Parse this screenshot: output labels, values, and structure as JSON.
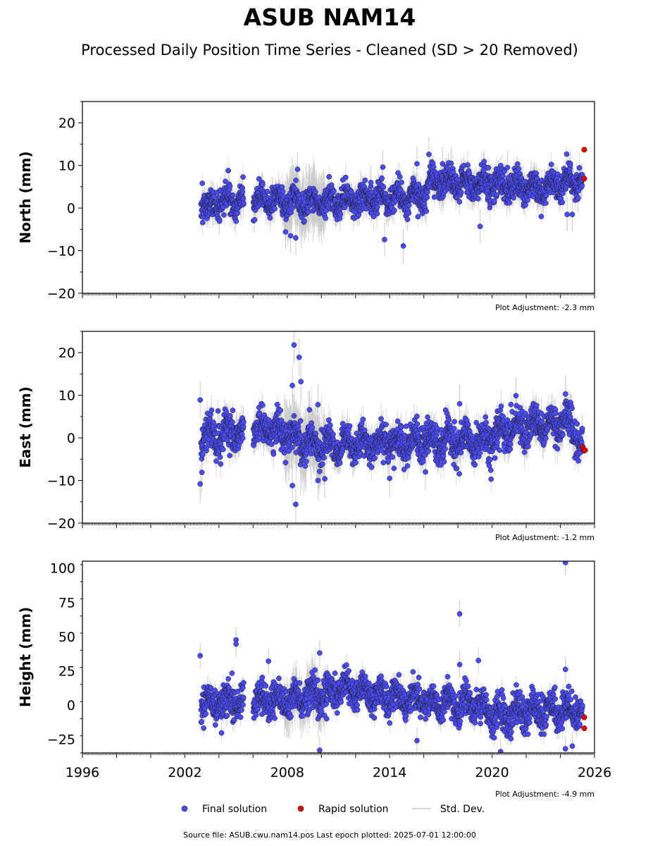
{
  "title": "ASUB NAM14",
  "subtitle": "Processed Daily Position Time Series - Cleaned (SD > 20 Removed)",
  "source_note": "Source file: ASUB.cwu.nam14.pos  Last epoch plotted: 2025-07-01 12:00:00",
  "legend": {
    "final": "Final solution",
    "rapid": "Rapid solution",
    "std": "Std. Dev."
  },
  "colors": {
    "final": "#4b4bf5",
    "rapid": "#e80000",
    "std": "#c8c8c8",
    "edge": "#1a1a1a"
  },
  "chart_data": [
    {
      "type": "scatter",
      "ylabel": "North (mm)",
      "ylim": [
        -20,
        25
      ],
      "yticks": [
        -20,
        -10,
        0,
        10,
        20
      ],
      "ytick_labels": [
        "−20",
        "−10",
        "0",
        "10",
        "20"
      ],
      "xlim": [
        1996,
        2026
      ],
      "adjustment": "Plot Adjustment: -2.3 mm",
      "trend": [
        [
          2003.0,
          0.8
        ],
        [
          2006.0,
          1.7
        ],
        [
          2010.0,
          1.2
        ],
        [
          2016.1,
          2.8
        ],
        [
          2016.3,
          6.5
        ],
        [
          2023.0,
          4.6
        ],
        [
          2025.3,
          6.8
        ]
      ],
      "scatter_sd": 1.6,
      "sigma": 2.5,
      "outliers": [
        [
          2008.6,
          9.1
        ],
        [
          2008.5,
          -7.0
        ],
        [
          2008.2,
          -6.5
        ],
        [
          2013.6,
          9.6
        ],
        [
          2013.7,
          -7.4
        ],
        [
          2014.8,
          -8.9
        ],
        [
          2016.3,
          12.6
        ],
        [
          2017.6,
          10.5
        ],
        [
          2007.9,
          -5.6
        ],
        [
          2012.9,
          6.0
        ],
        [
          2024.4,
          -1.5
        ],
        [
          2024.7,
          -1.5
        ],
        [
          2019.3,
          -4.3
        ],
        [
          2015.6,
          10.4
        ],
        [
          2017.1,
          10.4
        ],
        [
          2020.9,
          9.5
        ],
        [
          2019.5,
          8.9
        ]
      ],
      "rapid": [
        [
          2025.4,
          13.7
        ],
        [
          2025.4,
          6.9
        ]
      ]
    },
    {
      "type": "scatter",
      "ylabel": "East (mm)",
      "ylim": [
        -20,
        25
      ],
      "yticks": [
        -20,
        -10,
        0,
        10,
        20
      ],
      "ytick_labels": [
        "−20",
        "−10",
        "0",
        "10",
        "20"
      ],
      "xlim": [
        1996,
        2026
      ],
      "adjustment": "Plot Adjustment: -1.2 mm",
      "trend": [
        [
          2003.0,
          0.5
        ],
        [
          2006.0,
          2.0
        ],
        [
          2008.0,
          1.5
        ],
        [
          2009.0,
          -1.5
        ],
        [
          2013.0,
          -1.5
        ],
        [
          2016.0,
          -1.2
        ],
        [
          2019.0,
          -1.0
        ],
        [
          2022.0,
          2.8
        ],
        [
          2024.5,
          3.6
        ],
        [
          2025.2,
          -1.0
        ]
      ],
      "scatter_sd": 2.0,
      "sigma": 2.8,
      "outliers": [
        [
          2008.4,
          21.8
        ],
        [
          2008.7,
          18.9
        ],
        [
          2008.8,
          13.2
        ],
        [
          2008.3,
          12.3
        ],
        [
          2008.5,
          -15.6
        ],
        [
          2008.3,
          -11.2
        ],
        [
          2002.9,
          -10.8
        ],
        [
          2003.0,
          -8.1
        ],
        [
          2002.9,
          8.9
        ],
        [
          2009.8,
          -10.0
        ],
        [
          2010.2,
          -9.6
        ],
        [
          2009.3,
          6.6
        ],
        [
          2009.8,
          7.8
        ],
        [
          2018.1,
          8.0
        ],
        [
          2021.4,
          9.9
        ],
        [
          2024.3,
          10.3
        ],
        [
          2016.1,
          -8.0
        ],
        [
          2014.0,
          -9.5
        ],
        [
          2007.9,
          -5.8
        ]
      ],
      "rapid": [
        [
          2025.3,
          -2.2
        ],
        [
          2025.35,
          -2.6
        ],
        [
          2025.4,
          -3.0
        ],
        [
          2025.45,
          -2.9
        ]
      ]
    },
    {
      "type": "scatter",
      "ylabel": "Height (mm)",
      "ylim": [
        -35,
        105
      ],
      "yticks": [
        -25,
        0,
        25,
        50,
        75,
        100
      ],
      "ytick_labels": [
        "−25",
        "0",
        "25",
        "50",
        "75",
        "100"
      ],
      "xlim": [
        1996,
        2026
      ],
      "xticks": [
        1996,
        2002,
        2008,
        2014,
        2020,
        2026
      ],
      "xtick_labels": [
        "1996",
        "2002",
        "2008",
        "2014",
        "2020",
        "2026"
      ],
      "adjustment": "Plot Adjustment: -4.9 mm",
      "trend": [
        [
          2003.0,
          0.0
        ],
        [
          2006.0,
          4.0
        ],
        [
          2009.0,
          4.0
        ],
        [
          2011.0,
          12.0
        ],
        [
          2013.0,
          9.0
        ],
        [
          2016.0,
          2.0
        ],
        [
          2019.0,
          0.0
        ],
        [
          2020.5,
          -9.0
        ],
        [
          2022.0,
          -4.0
        ],
        [
          2025.0,
          -4.0
        ]
      ],
      "scatter_sd": 6.0,
      "sigma": 6.0,
      "outliers": [
        [
          2002.9,
          36.0
        ],
        [
          2005.0,
          47.5
        ],
        [
          2005.0,
          44.5
        ],
        [
          2006.9,
          32.0
        ],
        [
          2018.1,
          66.5
        ],
        [
          2018.1,
          29.5
        ],
        [
          2019.2,
          32.5
        ],
        [
          2024.3,
          104.0
        ],
        [
          2024.3,
          26.0
        ],
        [
          2024.3,
          -32.0
        ],
        [
          2024.7,
          -30.0
        ],
        [
          2009.9,
          -33.0
        ],
        [
          2009.9,
          38.0
        ],
        [
          2015.6,
          -26.0
        ],
        [
          2020.5,
          -34.0
        ]
      ],
      "rapid": [
        [
          2025.4,
          -9.0
        ],
        [
          2025.4,
          -17.0
        ]
      ]
    }
  ]
}
